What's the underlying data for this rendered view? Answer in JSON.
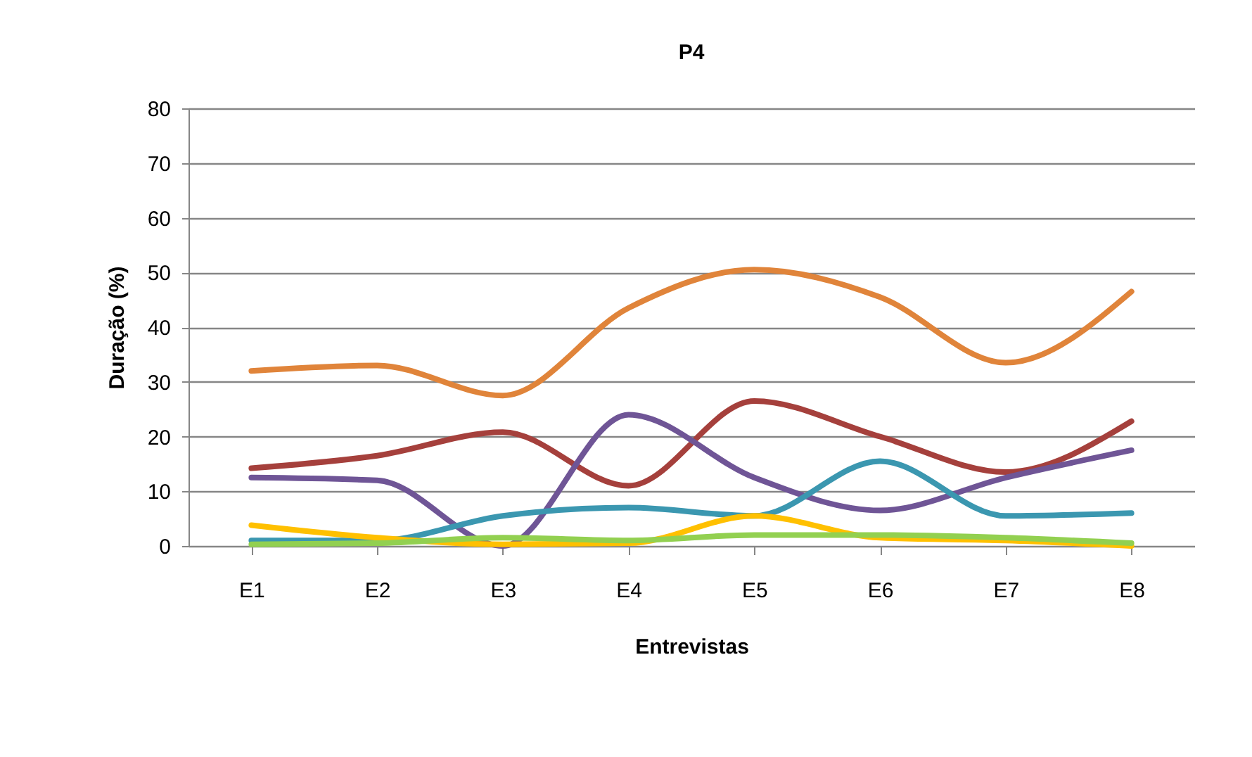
{
  "chart_data": {
    "type": "line",
    "title": "P4",
    "xlabel": "Entrevistas",
    "ylabel": "Duração (%)",
    "categories": [
      "E1",
      "E2",
      "E3",
      "E4",
      "E5",
      "E6",
      "E7",
      "E8"
    ],
    "series": [
      {
        "color": "#e0843a",
        "values": [
          32,
          33,
          27.5,
          43.5,
          50.5,
          45.5,
          33.5,
          46.5
        ]
      },
      {
        "color": "#a5403c",
        "values": [
          14.2,
          16.5,
          20.8,
          11,
          26.5,
          20,
          13.5,
          22.8
        ]
      },
      {
        "color": "#6f5596",
        "values": [
          12.5,
          12,
          0,
          24,
          12.5,
          6.5,
          12.5,
          17.5
        ]
      },
      {
        "color": "#3b97b0",
        "values": [
          1,
          1,
          5.5,
          7,
          5.5,
          15.5,
          5.5,
          6
        ]
      },
      {
        "color": "#ffc000",
        "values": [
          3.8,
          1.5,
          0.3,
          0.5,
          5.5,
          1.5,
          1,
          0
        ]
      },
      {
        "color": "#92d050",
        "values": [
          0.3,
          0.5,
          1.5,
          1,
          2,
          2,
          1.5,
          0.5
        ]
      }
    ],
    "ylim": [
      0,
      80
    ],
    "yticks": [
      0,
      10,
      20,
      30,
      40,
      50,
      60,
      70,
      80
    ],
    "grid": "y",
    "legend": false,
    "marker": "none",
    "line_style": "solid"
  }
}
